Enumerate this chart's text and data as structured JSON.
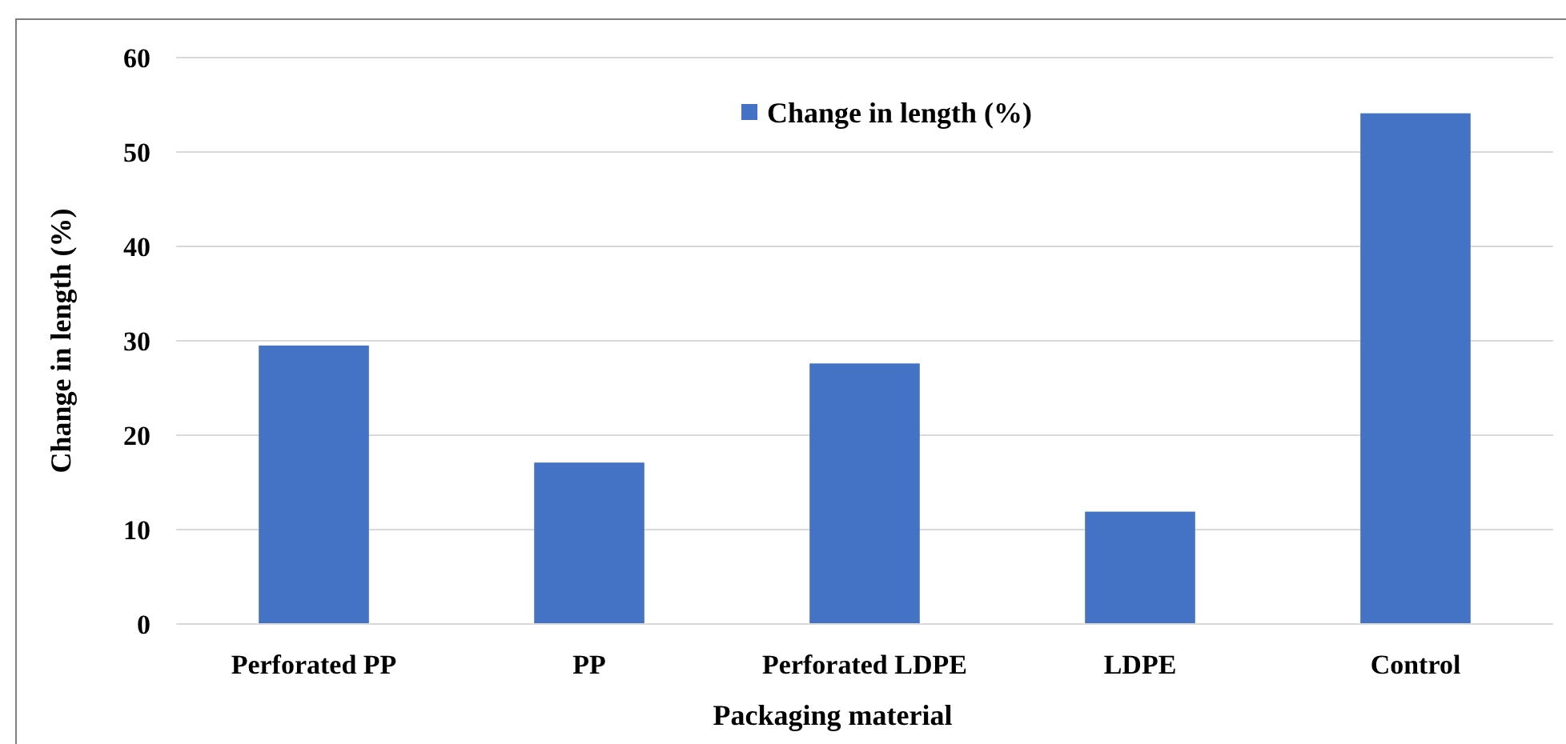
{
  "chart_data": {
    "type": "bar",
    "xlabel": "Packaging material",
    "ylabel": "Change in length (%)",
    "categories": [
      "Perforated PP",
      "PP",
      "Perforated LDPE",
      "LDPE",
      "Control"
    ],
    "series": [
      {
        "name": "Change in length (%)",
        "color": "#4472c4",
        "values": [
          29.5,
          17.1,
          27.6,
          11.9,
          54.1
        ]
      }
    ],
    "ylim": [
      0,
      60
    ],
    "yticks": [
      0,
      10,
      20,
      30,
      40,
      50,
      60
    ],
    "grid": "y",
    "legend": "top"
  }
}
